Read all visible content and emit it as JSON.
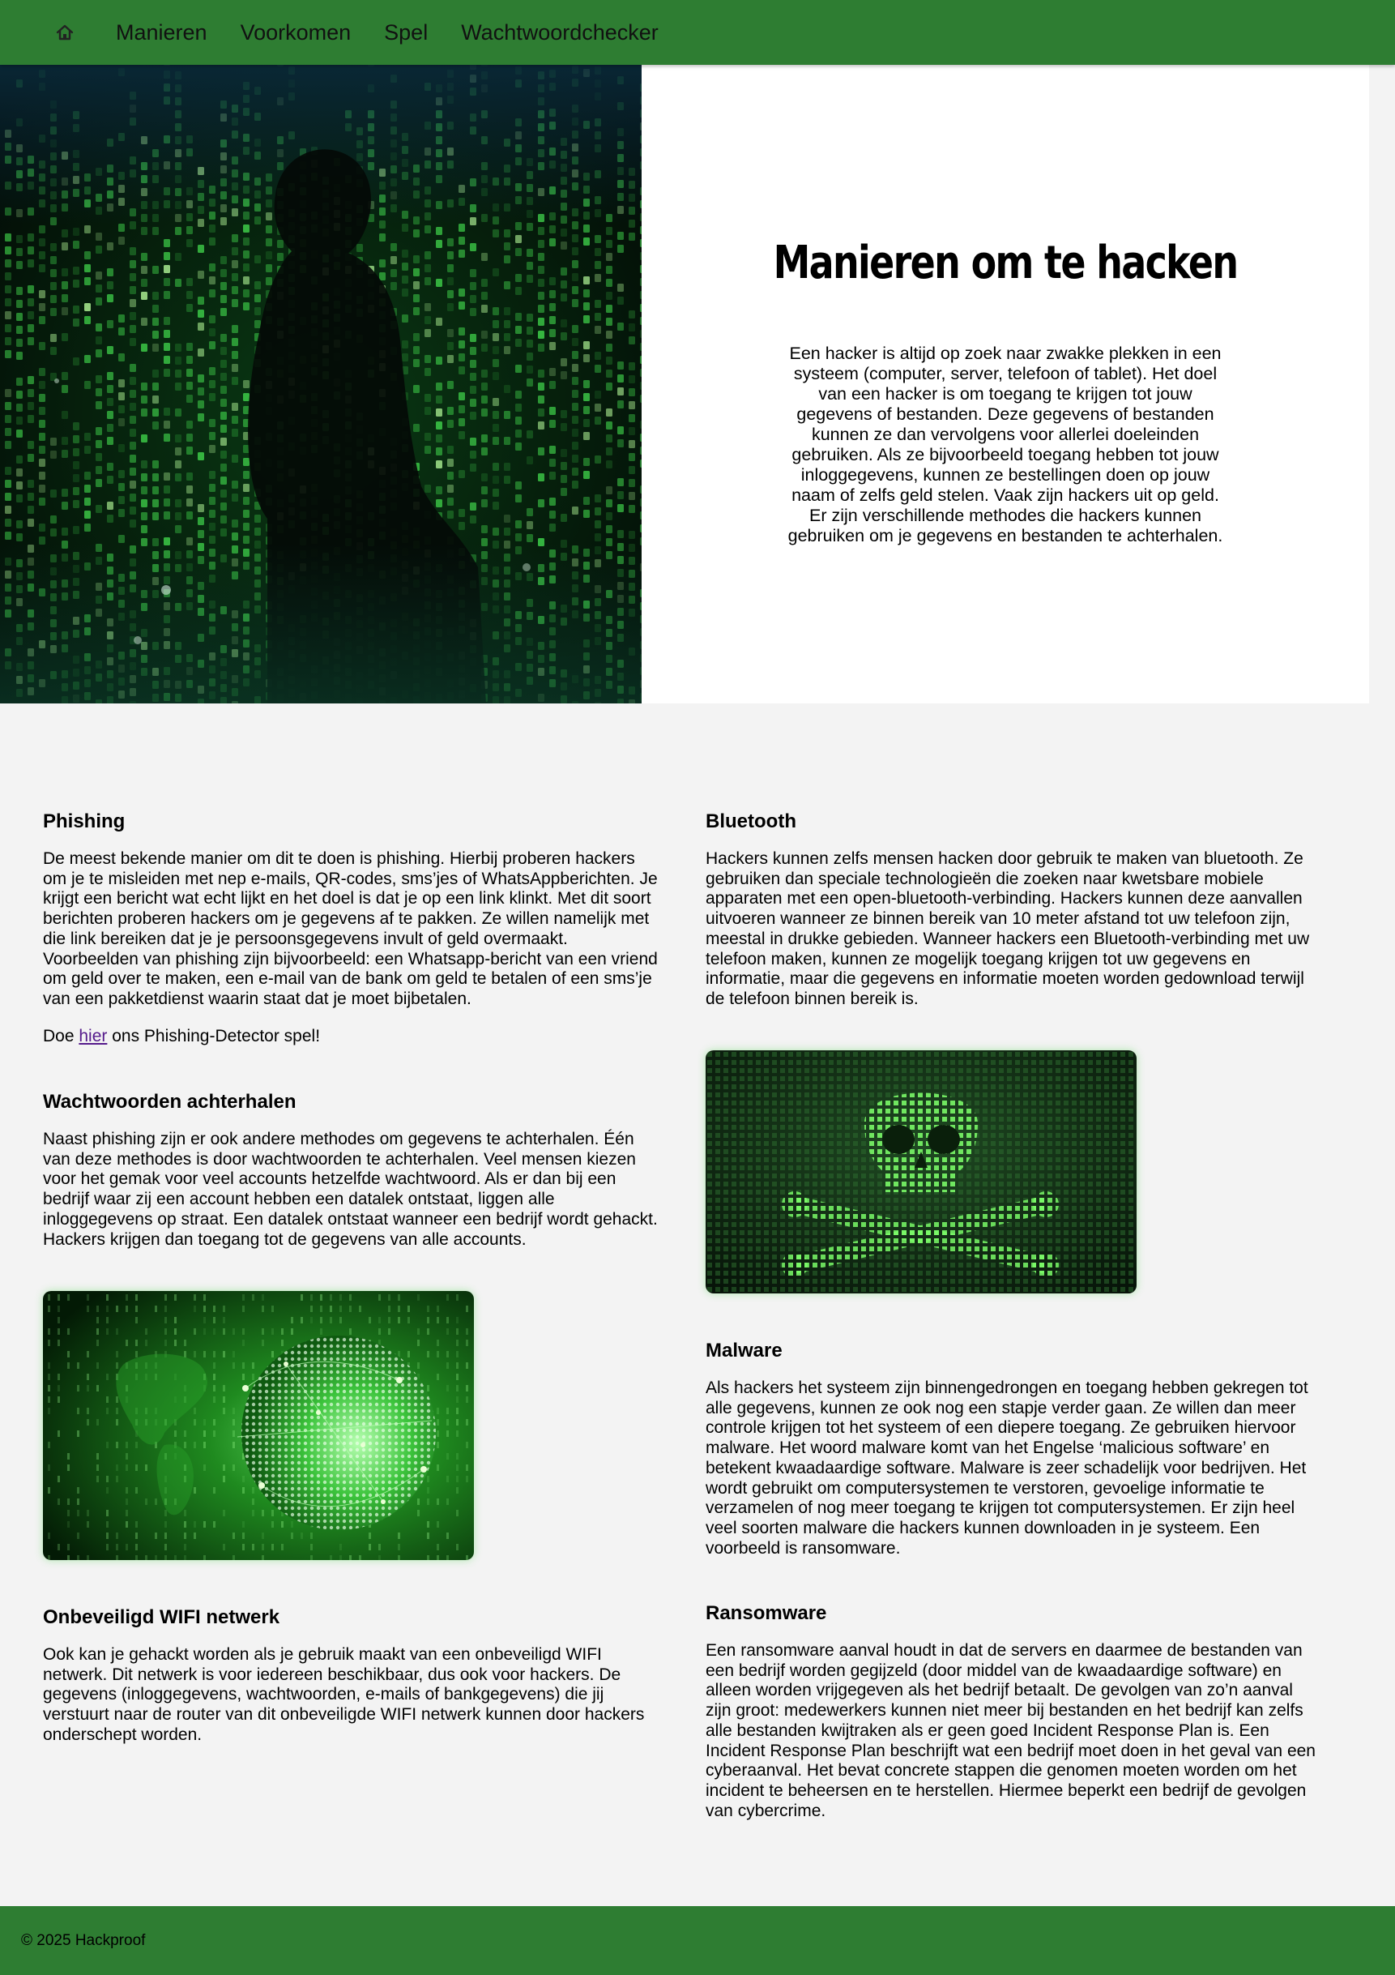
{
  "nav": {
    "home_icon": "home-icon",
    "items": [
      "Manieren",
      "Voorkomen",
      "Spel",
      "Wachtwoordchecker"
    ]
  },
  "hero": {
    "title": "Manieren om te hacken",
    "text": "Een hacker is altijd op zoek naar zwakke plekken in een systeem (computer, server, telefoon of tablet). Het doel van een hacker is om toegang te krijgen tot jouw gegevens of bestanden. Deze gegevens of bestanden kunnen ze dan vervolgens voor allerlei doeleinden gebruiken. Als ze bijvoorbeeld toegang hebben tot jouw inloggegevens, kunnen ze bestellingen doen op jouw naam of zelfs geld stelen. Vaak zijn hackers uit op geld. Er zijn verschillende methodes die hackers kunnen gebruiken om je gegevens en bestanden te achterhalen."
  },
  "sections": {
    "phishing": {
      "title": "Phishing",
      "text": "De meest bekende manier om dit te doen is phishing. Hierbij proberen hackers om je te misleiden met nep e-mails, QR-codes, sms’jes of WhatsAppberichten. Je krijgt een bericht wat echt lijkt en het doel is dat je op een link klinkt. Met dit soort berichten proberen hackers om je gegevens af te pakken. Ze willen namelijk met die link bereiken dat je je persoonsgegevens invult of geld overmaakt. Voorbeelden van phishing zijn bijvoorbeeld: een Whatsapp-bericht van een vriend om geld over te maken, een e-mail van de bank om geld te betalen of een sms’je van een pakketdienst waarin staat dat je moet bijbetalen.",
      "cta_before": "Doe ",
      "cta_link": "hier",
      "cta_after": " ons Phishing-Detector spel!"
    },
    "passwords": {
      "title": "Wachtwoorden achterhalen",
      "text": "Naast phishing zijn er ook andere methodes om gegevens te achterhalen. Één van deze methodes is door wachtwoorden te achterhalen. Veel mensen kiezen voor het gemak voor veel accounts hetzelfde wachtwoord. Als er dan bij een bedrijf waar zij een account hebben een datalek ontstaat, liggen alle inloggegevens op straat. Een datalek ontstaat wanneer een bedrijf wordt gehackt. Hackers krijgen dan toegang tot de gegevens van alle accounts."
    },
    "wifi": {
      "title": "Onbeveiligd WIFI netwerk",
      "text": "Ook kan je gehackt worden als je gebruik maakt van een onbeveiligd WIFI netwerk. Dit netwerk is voor iedereen beschikbaar, dus ook voor hackers. De gegevens (inloggegevens, wachtwoorden, e-mails of bankgegevens) die jij verstuurt naar de router van dit onbeveiligde WIFI netwerk kunnen door hackers onderschept worden."
    },
    "bluetooth": {
      "title": "Bluetooth",
      "text": "Hackers kunnen zelfs mensen hacken door gebruik te maken van bluetooth. Ze gebruiken dan speciale technologieën die zoeken naar kwetsbare mobiele apparaten met een open-bluetooth-verbinding. Hackers kunnen deze aanvallen uitvoeren wanneer ze binnen bereik van 10 meter afstand tot uw telefoon zijn, meestal in drukke gebieden. Wanneer hackers een Bluetooth-verbinding met uw telefoon maken, kunnen ze mogelijk toegang krijgen tot uw gegevens en informatie, maar die gegevens en informatie moeten worden gedownload terwijl de telefoon binnen bereik is."
    },
    "malware": {
      "title": "Malware",
      "text": "Als hackers het systeem zijn binnengedrongen en toegang hebben gekregen tot alle gegevens, kunnen ze ook nog een stapje verder gaan. Ze willen dan meer controle krijgen tot het systeem of een diepere toegang. Ze gebruiken hiervoor malware. Het woord malware komt van het Engelse ‘malicious software’ en betekent kwaadaardige software. Malware is zeer schadelijk voor bedrijven. Het wordt gebruikt om computersystemen te verstoren, gevoelige informatie te verzamelen of nog meer toegang te krijgen tot computersystemen. Er zijn heel veel soorten malware die hackers kunnen downloaden in je systeem. Een voorbeeld is ransomware."
    },
    "ransomware": {
      "title": "Ransomware",
      "text": "Een ransomware aanval houdt in dat de servers en daarmee de bestanden van een bedrijf worden gegijzeld (door middel van de kwaadaardige software) en alleen worden vrijgegeven als het bedrijf betaalt. De gevolgen van zo’n aanval zijn groot: medewerkers kunnen niet meer bij bestanden en het bedrijf kan zelfs alle bestanden kwijtraken als er geen goed Incident Response Plan is. Een Incident Response Plan beschrijft wat een bedrijf moet doen in het geval van een cyberaanval. Het bevat concrete stappen die genomen moeten worden om het incident te beheersen en te herstellen. Hiermee beperkt een bedrijf de gevolgen van cybercrime."
    }
  },
  "footer": {
    "text": "© 2025 Hackproof"
  },
  "colors": {
    "nav_bg": "#2e7d32",
    "page_bg": "#f3f3f3",
    "link_visited": "#551a8b"
  }
}
